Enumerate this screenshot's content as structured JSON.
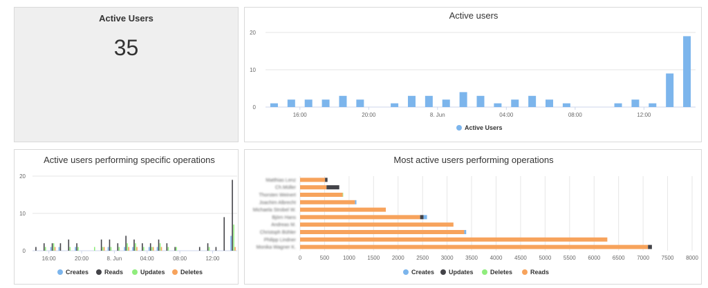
{
  "stat": {
    "title": "Active Users",
    "value": "35"
  },
  "chart_data": [
    {
      "type": "bar",
      "title": "Active users",
      "x_ticks": [
        "16:00",
        "20:00",
        "8. Jun",
        "04:00",
        "08:00",
        "12:00"
      ],
      "ylim": [
        0,
        20
      ],
      "y_ticks": [
        0,
        10,
        20
      ],
      "legend_position": "bottom",
      "series": [
        {
          "name": "Active Users",
          "color": "#7cb5ec",
          "values": [
            1,
            2,
            2,
            2,
            3,
            2,
            0,
            1,
            3,
            3,
            2,
            4,
            3,
            1,
            2,
            3,
            2,
            1,
            0,
            0,
            1,
            2,
            1,
            9,
            19
          ]
        }
      ]
    },
    {
      "type": "bar",
      "title": "Active users performing specific operations",
      "x_ticks": [
        "16:00",
        "20:00",
        "8. Jun",
        "04:00",
        "08:00",
        "12:00"
      ],
      "ylim": [
        0,
        20
      ],
      "y_ticks": [
        0,
        10,
        20
      ],
      "legend_position": "bottom",
      "series": [
        {
          "name": "Creates",
          "color": "#7cb5ec",
          "values": [
            0,
            0,
            1,
            1,
            0,
            1,
            0,
            0,
            0,
            1,
            0,
            1,
            1,
            0,
            1,
            1,
            0,
            0,
            0,
            0,
            0,
            0,
            0,
            0,
            4
          ]
        },
        {
          "name": "Reads",
          "color": "#434348",
          "values": [
            1,
            2,
            2,
            2,
            3,
            2,
            0,
            0,
            3,
            3,
            2,
            4,
            3,
            2,
            2,
            3,
            2,
            1,
            0,
            0,
            1,
            2,
            1,
            9,
            19
          ]
        },
        {
          "name": "Updates",
          "color": "#90ed7d",
          "values": [
            0,
            1,
            2,
            0,
            1,
            1,
            0,
            1,
            1,
            1,
            1,
            2,
            2,
            1,
            1,
            2,
            1,
            1,
            0,
            0,
            0,
            1,
            0,
            0,
            7
          ]
        },
        {
          "name": "Deletes",
          "color": "#f7a35c",
          "values": [
            0,
            0,
            1,
            0,
            0,
            0,
            0,
            0,
            1,
            0,
            0,
            1,
            1,
            0,
            1,
            1,
            0,
            0,
            0,
            0,
            0,
            0,
            0,
            0,
            1
          ]
        }
      ]
    },
    {
      "type": "bar",
      "orientation": "horizontal",
      "stacked": true,
      "title": "Most active users performing operations",
      "categories": [
        "Matthias Lenz",
        "Ch.Müller",
        "Thorsten Weinert",
        "Joachim Albrecht",
        "Michaela Strobel W.",
        "Björn Hans",
        "Andreas M.",
        "Christoph Bühler",
        "Philipp Lindner",
        "Monika Wagner K."
      ],
      "categories_blurred": true,
      "xlim": [
        0,
        8000
      ],
      "x_ticks": [
        0,
        500,
        1000,
        1500,
        2000,
        2500,
        3000,
        3500,
        4000,
        4500,
        5000,
        5500,
        6000,
        6500,
        7000,
        7500,
        8000
      ],
      "legend_position": "bottom",
      "legend": [
        "Creates",
        "Updates",
        "Deletes",
        "Reads"
      ],
      "series": [
        {
          "name": "Reads",
          "color": "#f7a35c",
          "values": [
            510,
            540,
            870,
            1120,
            1750,
            2450,
            3130,
            3350,
            6270,
            7100
          ]
        },
        {
          "name": "Updates",
          "color": "#434348",
          "values": [
            50,
            260,
            0,
            0,
            0,
            70,
            0,
            0,
            0,
            80
          ]
        },
        {
          "name": "Creates",
          "color": "#7cb5ec",
          "values": [
            0,
            0,
            0,
            30,
            0,
            70,
            0,
            40,
            0,
            0
          ]
        },
        {
          "name": "Deletes",
          "color": "#90ed7d",
          "values": [
            0,
            0,
            10,
            0,
            0,
            0,
            0,
            0,
            0,
            0
          ]
        }
      ]
    }
  ]
}
